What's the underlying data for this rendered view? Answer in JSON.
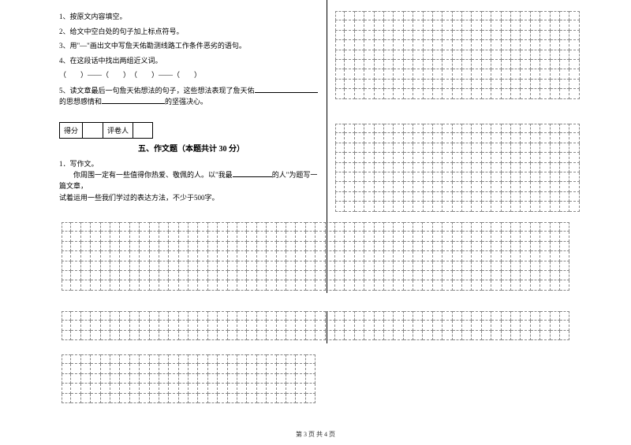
{
  "questions": {
    "q1": "1、按原文内容填空。",
    "q2": "2、给文中空白处的句子加上标点符号。",
    "q3": "3、用\"—\"画出文中写詹天佑勘测线路工作条件恶劣的语句。",
    "q4": "4、在这段话中找出两组近义词。",
    "q4_pattern": "（　　）——（　　）　（　　）——（　　）",
    "q5_a": "5、读文章最后一句詹天佑想法的句子，这些想法表现了詹天佑",
    "q5_b": "的思想感情和",
    "q5_c": "的坚强决心。"
  },
  "score": {
    "label1": "得分",
    "label2": "评卷人"
  },
  "section": {
    "title": "五、作文题（本题共计 30 分）"
  },
  "essay": {
    "num": "1．写作文。",
    "line1a": "你周围一定有一些值得你热爱、敬佩的人。以\"我最",
    "line1b": "的人\"为题写一篇文章，",
    "line2": "试着运用一些我们学过的表达方法，不少于500字。"
  },
  "grids": {
    "g1": {
      "rows": 9,
      "cols": 25
    },
    "g2": {
      "rows": 9,
      "cols": 25
    },
    "g3": {
      "rows": 7,
      "cols": 52
    },
    "g4": {
      "rows": 3,
      "cols": 52
    },
    "g5": {
      "rows": 5,
      "cols": 26
    }
  },
  "colors": {
    "text": "#000000",
    "grid_border": "#888888",
    "background": "#ffffff"
  },
  "typography": {
    "body_fontsize": 9,
    "title_fontsize": 10,
    "font_family": "SimSun"
  },
  "footer": "第 3 页 共 4 页"
}
